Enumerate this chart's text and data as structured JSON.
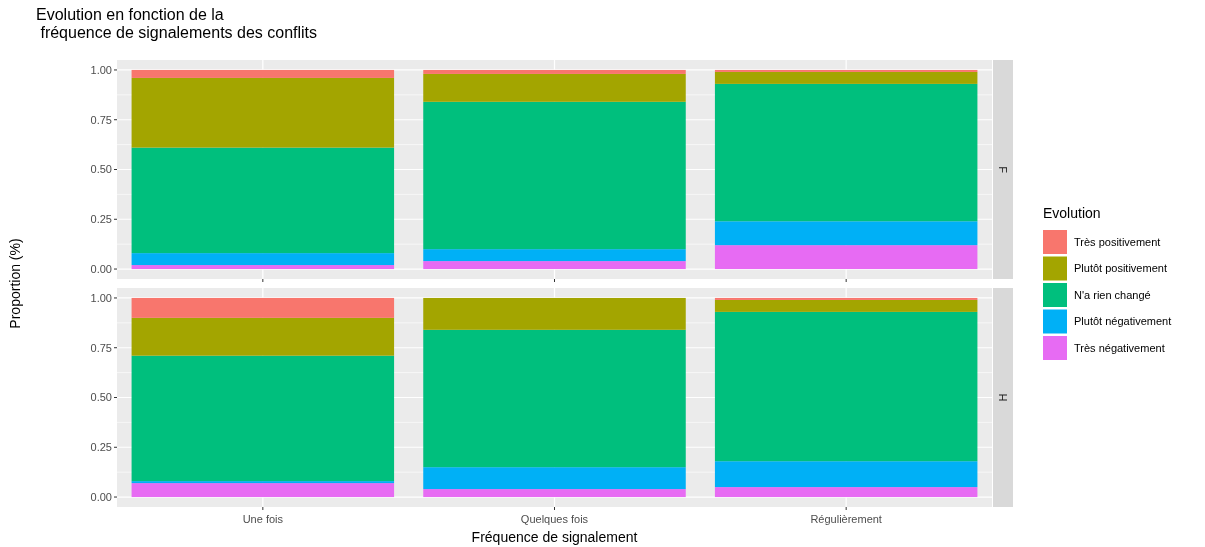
{
  "chart_data": [
    {
      "type": "bar",
      "title": "Evolution en fonction de la\n fréquence de signalements des conflits",
      "ylabel": "Proportion (%)",
      "legend_title": "Evolution",
      "annotations": [
        "F"
      ],
      "categories": [
        "Une fois",
        "Quelques fois",
        "Régulièrement"
      ],
      "stacked": true,
      "ylim": [
        -0.05,
        1.05
      ],
      "yticks": [
        {
          "value": 0,
          "label": "0.00"
        },
        {
          "value": 0.25,
          "label": "0.25"
        },
        {
          "value": 0.5,
          "label": "0.50"
        },
        {
          "value": 0.75,
          "label": "0.75"
        },
        {
          "value": 1,
          "label": "1.00"
        }
      ],
      "grid": true,
      "legend": "right",
      "tick_labels": "y",
      "series": [
        {
          "name": "Très négativement",
          "color": "#e76bf3",
          "values": [
            0.02,
            0.04,
            0.12
          ]
        },
        {
          "name": "Plutôt négativement",
          "color": "#00b0f6",
          "values": [
            0.06,
            0.06,
            0.12
          ]
        },
        {
          "name": "N'a rien changé",
          "color": "#00bf7d",
          "values": [
            0.53,
            0.74,
            0.69
          ]
        },
        {
          "name": "Plutôt positivement",
          "color": "#a3a500",
          "values": [
            0.35,
            0.14,
            0.06
          ]
        },
        {
          "name": "Très positivement",
          "color": "#f8766d",
          "values": [
            0.04,
            0.02,
            0.01
          ]
        }
      ]
    },
    {
      "type": "bar",
      "xlabel": "Fréquence de signalement",
      "annotations": [
        "H"
      ],
      "categories": [
        "Une fois",
        "Quelques fois",
        "Régulièrement"
      ],
      "stacked": true,
      "ylim": [
        -0.05,
        1.05
      ],
      "yticks": [
        {
          "value": 0,
          "label": "0.00"
        },
        {
          "value": 0.25,
          "label": "0.25"
        },
        {
          "value": 0.5,
          "label": "0.50"
        },
        {
          "value": 0.75,
          "label": "0.75"
        },
        {
          "value": 1,
          "label": "1.00"
        }
      ],
      "grid": true,
      "series": [
        {
          "name": "Très négativement",
          "color": "#e76bf3",
          "values": [
            0.07,
            0.04,
            0.05
          ]
        },
        {
          "name": "Plutôt négativement",
          "color": "#00b0f6",
          "values": [
            0.01,
            0.11,
            0.13
          ]
        },
        {
          "name": "N'a rien changé",
          "color": "#00bf7d",
          "values": [
            0.63,
            0.69,
            0.75
          ]
        },
        {
          "name": "Plutôt positivement",
          "color": "#a3a500",
          "values": [
            0.19,
            0.16,
            0.06
          ]
        },
        {
          "name": "Très positivement",
          "color": "#f8766d",
          "values": [
            0.1,
            0,
            0.01
          ]
        }
      ]
    }
  ]
}
